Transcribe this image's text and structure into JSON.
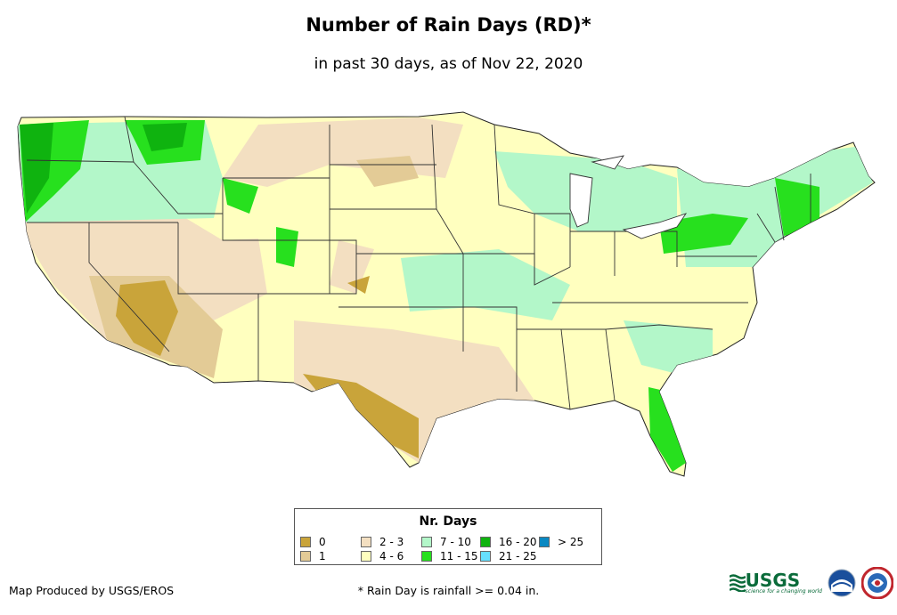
{
  "title": "Number of Rain Days (RD)*",
  "subtitle": "in past 30 days, as of Nov 22, 2020",
  "legend": {
    "title": "Nr. Days",
    "items": [
      {
        "label": "0",
        "color": "#c9a43a"
      },
      {
        "label": "1",
        "color": "#e3cb96"
      },
      {
        "label": "2 - 3",
        "color": "#f3dfc1"
      },
      {
        "label": "4 - 6",
        "color": "#ffffbf"
      },
      {
        "label": "7 - 10",
        "color": "#b3f7c9"
      },
      {
        "label": "11 - 15",
        "color": "#27e01e"
      },
      {
        "label": "16 - 20",
        "color": "#0fb30f"
      },
      {
        "label": "21 - 25",
        "color": "#66e0ff"
      },
      {
        "label": "> 25",
        "color": "#0a88c2"
      }
    ]
  },
  "credit": "Map Produced by USGS/EROS",
  "footnote": "* Rain Day is rainfall >= 0.04 in.",
  "logos": {
    "usgs_name": "USGS",
    "usgs_tagline": "science for a changing world",
    "noaa_icon": "noaa-logo-icon",
    "nws_icon": "nws-logo-icon"
  }
}
